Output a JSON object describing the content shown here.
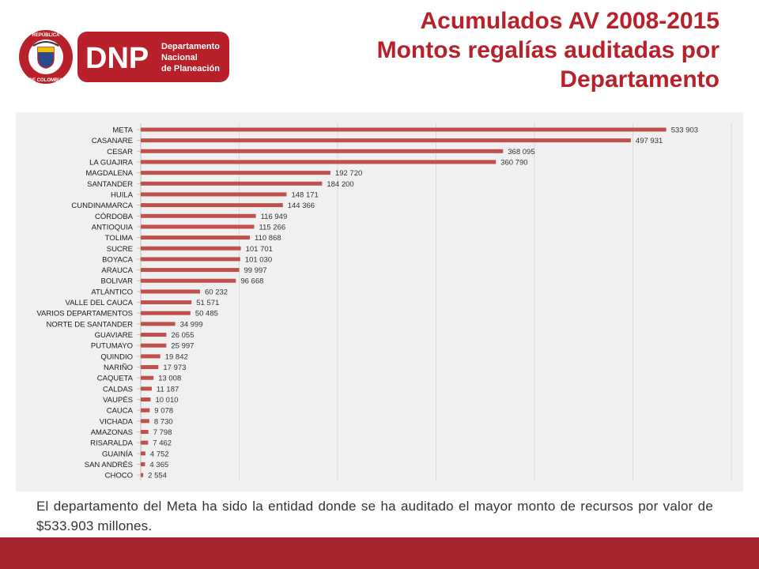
{
  "header": {
    "title_line1": "Acumulados AV 2008-2015",
    "title_line2": "Montos regalías auditadas por",
    "title_line3": "Departamento",
    "logo": {
      "seal_top_text": "REPÚBLICA",
      "seal_bottom_text": "DE COLOMBIA",
      "acronym": "DNP",
      "name_line1": "Departamento",
      "name_line2": "Nacional",
      "name_line3": "de Planeación"
    }
  },
  "caption": " El departamento del Meta ha sido la entidad donde se ha auditado el mayor monto de recursos por valor de $533.903 millones.",
  "colors": {
    "brand_red": "#b8202a",
    "bar": "#c0504d",
    "footer": "#a6252e",
    "plot_bg": "#f0f0f0"
  },
  "chart_data": {
    "type": "bar",
    "orientation": "horizontal",
    "categories": [
      "META",
      "CASANARE",
      "CESAR",
      "LA GUAJIRA",
      "MAGDALENA",
      "SANTANDER",
      "HUILA",
      "CUNDINAMARCA",
      "CÓRDOBA",
      "ANTIOQUIA",
      "TOLIMA",
      "SUCRE",
      "BOYACA",
      "ARAUCA",
      "BOLIVAR",
      "ATLÁNTICO",
      "VALLE DEL CAUCA",
      "VARIOS DEPARTAMENTOS",
      "NORTE DE SANTANDER",
      "GUAVIARE",
      "PUTUMAYO",
      "QUINDIO",
      "NARIÑO",
      "CAQUETA",
      "CALDAS",
      "VAUPÉS",
      "CAUCA",
      "VICHADA",
      "AMAZONAS",
      "RISARALDA",
      "GUAINÍA",
      "SAN ANDRÉS",
      "CHOCO"
    ],
    "values": [
      533903,
      497931,
      368095,
      360790,
      192720,
      184200,
      148171,
      144366,
      116949,
      115266,
      110868,
      101701,
      101030,
      99997,
      96668,
      60232,
      51571,
      50485,
      34999,
      26055,
      25997,
      19842,
      17973,
      13008,
      11187,
      10010,
      9078,
      8730,
      7798,
      7462,
      4752,
      4365,
      2554
    ],
    "labels": [
      "533 903",
      "497 931",
      "368 095",
      "360 790",
      "192 720",
      "184 200",
      "148 171",
      "144 366",
      "116 949",
      "115 266",
      "110 868",
      "101 701",
      "101 030",
      "99 997",
      "96 668",
      "60 232",
      "51 571",
      "50 485",
      "34 999",
      "26 055",
      "25 997",
      "19 842",
      "17 973",
      "13 008",
      "11 187",
      "10 010",
      "9 078",
      "8 730",
      "7 798",
      "7 462",
      "4 752",
      "4 365",
      "2 554"
    ],
    "xlim": [
      0,
      600000
    ],
    "grid": "vertical",
    "legend": "none"
  }
}
